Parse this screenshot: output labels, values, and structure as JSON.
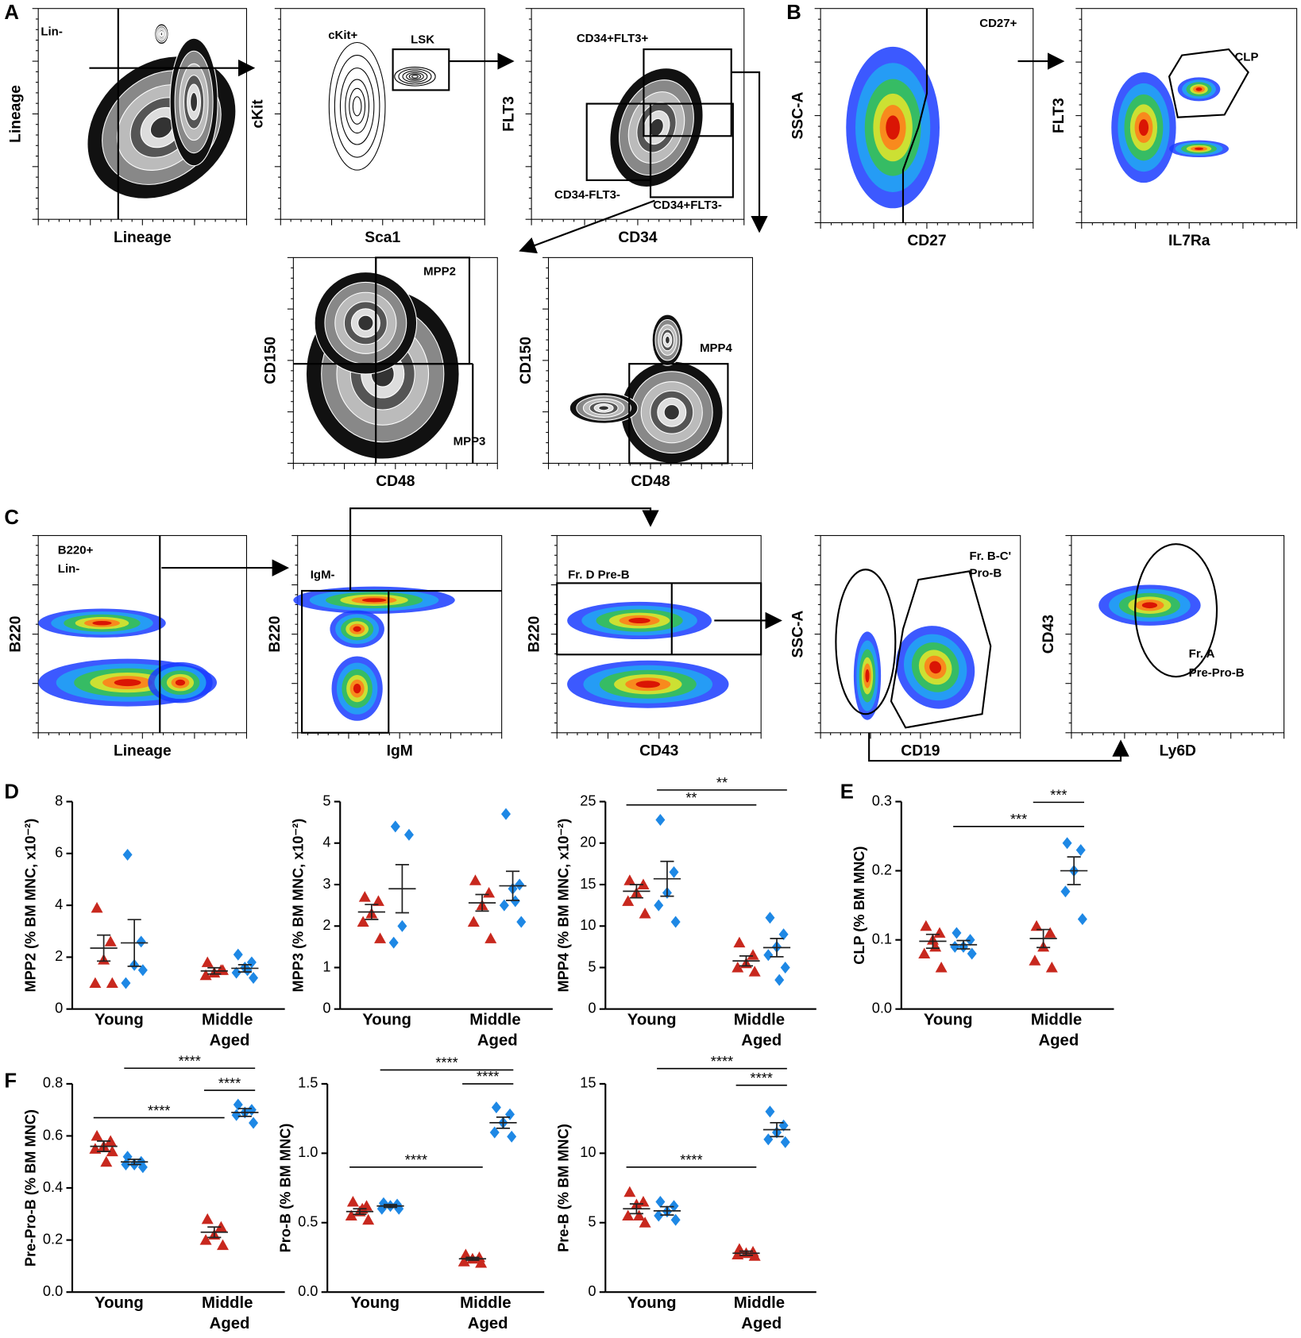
{
  "panel_letters": [
    "A",
    "B",
    "C",
    "D",
    "E",
    "F"
  ],
  "flow_panels": [
    {
      "x_label": "Lineage",
      "y_label": "Lineage",
      "gates": [
        "Lin-"
      ]
    },
    {
      "x_label": "Sca1",
      "y_label": "cKit",
      "gates": [
        "cKit+",
        "LSK"
      ]
    },
    {
      "x_label": "CD34",
      "y_label": "FLT3",
      "gates": [
        "CD34+FLT3+",
        "CD34-FLT3-",
        "CD34+FLT3-"
      ]
    },
    {
      "x_label": "CD48",
      "y_label": "CD150",
      "gates": [
        "MPP2",
        "MPP3"
      ]
    },
    {
      "x_label": "CD48",
      "y_label": "CD150",
      "gates": [
        "MPP4"
      ]
    },
    {
      "x_label": "CD27",
      "y_label": "SSC-A",
      "gates": [
        "CD27+"
      ]
    },
    {
      "x_label": "IL7Ra",
      "y_label": "FLT3",
      "gates": [
        "CLP"
      ]
    },
    {
      "x_label": "Lineage",
      "y_label": "B220",
      "gates": [
        "B220+",
        "Lin-"
      ]
    },
    {
      "x_label": "IgM",
      "y_label": "B220",
      "gates": [
        "IgM-"
      ]
    },
    {
      "x_label": "CD43",
      "y_label": "B220",
      "gates": [
        "Fr. D Pre-B"
      ]
    },
    {
      "x_label": "CD19",
      "y_label": "SSC-A",
      "gates": [
        "Fr. B-C'",
        "Pro-B"
      ]
    },
    {
      "x_label": "Ly6D",
      "y_label": "CD43",
      "gates": [
        "Fr. A",
        "Pre-Pro-B"
      ]
    }
  ],
  "chart_data": [
    {
      "type": "dot",
      "ylabel": "MPP2 (% BM MNC, x10⁻²)",
      "categories": [
        "Young",
        "Middle Aged"
      ],
      "ylim": [
        0,
        8
      ],
      "yticks": [
        0,
        2,
        4,
        6,
        8
      ],
      "series": [
        {
          "color": "#c8281e",
          "marker": "triangle",
          "values": [
            [
              3.9,
              2.6,
              1.9,
              1.0,
              1.0
            ],
            [
              1.8,
              1.5,
              1.4,
              1.3,
              1.5
            ]
          ],
          "mean": [
            2.35,
            1.47
          ],
          "sem": [
            0.5,
            0.12
          ]
        },
        {
          "color": "#1e88e5",
          "marker": "diamond",
          "values": [
            [
              5.95,
              2.6,
              1.7,
              1.0,
              1.5
            ],
            [
              2.1,
              1.8,
              1.6,
              1.4,
              1.2,
              1.5
            ]
          ],
          "mean": [
            2.55,
            1.57
          ],
          "sem": [
            0.9,
            0.14
          ]
        }
      ],
      "brackets": []
    },
    {
      "type": "dot",
      "ylabel": "MPP3 (% BM MNC, x10⁻²)",
      "categories": [
        "Young",
        "Middle Aged"
      ],
      "ylim": [
        0,
        5
      ],
      "yticks": [
        0,
        1,
        2,
        3,
        4,
        5
      ],
      "series": [
        {
          "color": "#c8281e",
          "marker": "triangle",
          "values": [
            [
              2.7,
              2.6,
              2.3,
              2.1,
              1.7
            ],
            [
              3.1,
              2.8,
              2.5,
              2.1,
              1.7
            ]
          ],
          "mean": [
            2.34,
            2.56
          ],
          "sem": [
            0.18,
            0.2
          ]
        },
        {
          "color": "#1e88e5",
          "marker": "diamond",
          "values": [
            [
              4.4,
              4.2,
              2.0,
              1.6
            ],
            [
              4.7,
              3.0,
              2.9,
              2.5,
              2.1,
              2.6
            ]
          ],
          "mean": [
            2.9,
            2.97
          ],
          "sem": [
            0.58,
            0.35
          ]
        }
      ],
      "brackets": []
    },
    {
      "type": "dot",
      "ylabel": "MPP4 (% BM MNC, x10⁻²)",
      "categories": [
        "Young",
        "Middle Aged"
      ],
      "ylim": [
        0,
        25
      ],
      "yticks": [
        0,
        5,
        10,
        15,
        20,
        25
      ],
      "series": [
        {
          "color": "#c8281e",
          "marker": "triangle",
          "values": [
            [
              15.5,
              15,
              14,
              13,
              11.5
            ],
            [
              8,
              6.5,
              5.5,
              5,
              4.5
            ]
          ],
          "mean": [
            14.2,
            5.8
          ],
          "sem": [
            0.8,
            0.6
          ]
        },
        {
          "color": "#1e88e5",
          "marker": "diamond",
          "values": [
            [
              22.8,
              16.5,
              14,
              12.5,
              10.5
            ],
            [
              11,
              9,
              7.5,
              6.5,
              5,
              3.5
            ]
          ],
          "mean": [
            15.7,
            7.4
          ],
          "sem": [
            2.1,
            1.1
          ]
        }
      ],
      "brackets": [
        {
          "text": "**",
          "y": 24.6,
          "from": [
            0,
            0
          ],
          "to": [
            1,
            0
          ]
        },
        {
          "text": "**",
          "y": 26.4,
          "from": [
            0,
            1
          ],
          "to": [
            1,
            1
          ]
        }
      ]
    },
    {
      "type": "dot",
      "ylabel": "CLP (% BM MNC)",
      "categories": [
        "Young",
        "Middle Aged"
      ],
      "ylim": [
        0,
        0.3
      ],
      "yticks": [
        {
          "value": 0,
          "label": "0.0"
        },
        0.1,
        0.2,
        0.3
      ],
      "series": [
        {
          "color": "#c8281e",
          "marker": "triangle",
          "values": [
            [
              0.12,
              0.11,
              0.1,
              0.08,
              0.06,
              0.09
            ],
            [
              0.12,
              0.11,
              0.09,
              0.07,
              0.06
            ]
          ],
          "mean": [
            0.098,
            0.102
          ],
          "sem": [
            0.01,
            0.013
          ]
        },
        {
          "color": "#1e88e5",
          "marker": "diamond",
          "values": [
            [
              0.11,
              0.1,
              0.09,
              0.09,
              0.08
            ],
            [
              0.24,
              0.23,
              0.2,
              0.17,
              0.13
            ]
          ],
          "mean": [
            0.093,
            0.2
          ],
          "sem": [
            0.006,
            0.02
          ]
        }
      ],
      "brackets": [
        {
          "text": "***",
          "y": 0.264,
          "from": [
            0,
            1
          ],
          "to": [
            1,
            1
          ]
        },
        {
          "text": "***",
          "y": 0.299,
          "from": [
            1,
            0
          ],
          "to": [
            1,
            1
          ]
        }
      ]
    },
    {
      "type": "dot",
      "ylabel": "Pre-Pro-B (% BM MNC)",
      "categories": [
        "Young",
        "Middle Aged"
      ],
      "ylim": [
        0,
        0.8
      ],
      "yticks": [
        {
          "value": 0,
          "label": "0.0"
        },
        0.2,
        0.4,
        0.6,
        0.8
      ],
      "series": [
        {
          "color": "#c8281e",
          "marker": "triangle",
          "values": [
            [
              0.6,
              0.58,
              0.56,
              0.55,
              0.54,
              0.5
            ],
            [
              0.28,
              0.25,
              0.22,
              0.2,
              0.18
            ]
          ],
          "mean": [
            0.56,
            0.23
          ],
          "sem": [
            0.02,
            0.02
          ]
        },
        {
          "color": "#1e88e5",
          "marker": "diamond",
          "values": [
            [
              0.52,
              0.5,
              0.49,
              0.49,
              0.48
            ],
            [
              0.72,
              0.7,
              0.69,
              0.68,
              0.65
            ]
          ],
          "mean": [
            0.5,
            0.69
          ],
          "sem": [
            0.01,
            0.015
          ]
        }
      ],
      "brackets": [
        {
          "text": "****",
          "y": 0.67,
          "from": [
            0,
            0
          ],
          "to": [
            1,
            0
          ]
        },
        {
          "text": "****",
          "y": 0.86,
          "from": [
            0,
            1
          ],
          "to": [
            1,
            1
          ]
        },
        {
          "text": "****",
          "y": 0.775,
          "from": [
            1,
            0
          ],
          "to": [
            1,
            1
          ]
        }
      ]
    },
    {
      "type": "dot",
      "ylabel": "Pro-B (% BM MNC)",
      "categories": [
        "Young",
        "Middle Aged"
      ],
      "ylim": [
        0,
        1.5
      ],
      "yticks": [
        {
          "value": 0,
          "label": "0.0"
        },
        0.5,
        {
          "value": 1,
          "label": "1.0"
        },
        1.5
      ],
      "series": [
        {
          "color": "#c8281e",
          "marker": "triangle",
          "values": [
            [
              0.65,
              0.62,
              0.58,
              0.55,
              0.52,
              0.6
            ],
            [
              0.27,
              0.25,
              0.24,
              0.22,
              0.21
            ]
          ],
          "mean": [
            0.58,
            0.24
          ],
          "sem": [
            0.02,
            0.01
          ]
        },
        {
          "color": "#1e88e5",
          "marker": "diamond",
          "values": [
            [
              0.64,
              0.63,
              0.62,
              0.6,
              0.6
            ],
            [
              1.33,
              1.28,
              1.22,
              1.15,
              1.12
            ]
          ],
          "mean": [
            0.62,
            1.22
          ],
          "sem": [
            0.01,
            0.04
          ]
        }
      ],
      "brackets": [
        {
          "text": "****",
          "y": 0.9,
          "from": [
            0,
            0
          ],
          "to": [
            1,
            0
          ]
        },
        {
          "text": "****",
          "y": 1.6,
          "from": [
            0,
            1
          ],
          "to": [
            1,
            1
          ]
        },
        {
          "text": "****",
          "y": 1.5,
          "from": [
            1,
            0
          ],
          "to": [
            1,
            1
          ]
        }
      ]
    },
    {
      "type": "dot",
      "ylabel": "Pre-B (% BM MNC)",
      "categories": [
        "Young",
        "Middle Aged"
      ],
      "ylim": [
        0,
        15
      ],
      "yticks": [
        0,
        5,
        10,
        15
      ],
      "series": [
        {
          "color": "#c8281e",
          "marker": "triangle",
          "values": [
            [
              7.2,
              6.5,
              6.3,
              5.5,
              5.0,
              5.5
            ],
            [
              3.1,
              2.9,
              2.8,
              2.7,
              2.6
            ]
          ],
          "mean": [
            6,
            2.8
          ],
          "sem": [
            0.35,
            0.15
          ]
        },
        {
          "color": "#1e88e5",
          "marker": "diamond",
          "values": [
            [
              6.5,
              6.2,
              5.8,
              5.5,
              5.2
            ],
            [
              13,
              12,
              11.5,
              11,
              10.8
            ]
          ],
          "mean": [
            5.85,
            11.7
          ],
          "sem": [
            0.3,
            0.5
          ]
        }
      ],
      "brackets": [
        {
          "text": "****",
          "y": 9.0,
          "from": [
            0,
            0
          ],
          "to": [
            1,
            0
          ]
        },
        {
          "text": "****",
          "y": 16.1,
          "from": [
            0,
            1
          ],
          "to": [
            1,
            1
          ]
        },
        {
          "text": "****",
          "y": 14.9,
          "from": [
            1,
            0
          ],
          "to": [
            1,
            1
          ]
        }
      ]
    }
  ]
}
